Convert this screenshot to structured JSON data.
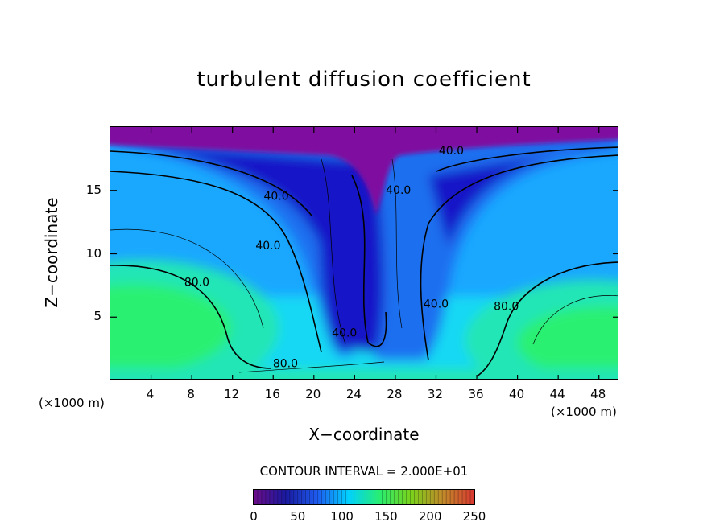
{
  "chart_data": {
    "type": "heatmap",
    "title": "turbulent diffusion coefficient",
    "xlabel": "X−coordinate",
    "ylabel": "Z−coordinate",
    "x_unit": "(×1000 m)",
    "y_unit": "(×1000 m)",
    "xlim": [
      0,
      50
    ],
    "ylim": [
      0,
      20
    ],
    "x_ticks": [
      4,
      8,
      12,
      16,
      20,
      24,
      28,
      32,
      36,
      40,
      44,
      48
    ],
    "y_ticks": [
      5,
      10,
      15
    ],
    "contour_interval_text": "CONTOUR INTERVAL = 2.000E+01",
    "contour_labels": [
      {
        "text": "40.0",
        "x": 33.5,
        "y": 18.1
      },
      {
        "text": "40.0",
        "x": 16.3,
        "y": 14.5
      },
      {
        "text": "40.0",
        "x": 15.5,
        "y": 10.6
      },
      {
        "text": "40.0",
        "x": 28.3,
        "y": 15.0
      },
      {
        "text": "40.0",
        "x": 32.0,
        "y": 6.0
      },
      {
        "text": "40.0",
        "x": 23.0,
        "y": 3.7
      },
      {
        "text": "80.0",
        "x": 8.5,
        "y": 7.7
      },
      {
        "text": "80.0",
        "x": 38.9,
        "y": 5.8
      },
      {
        "text": "80.0",
        "x": 17.2,
        "y": 1.3
      }
    ],
    "colorbar": {
      "min": 0,
      "max": 250,
      "ticks": [
        0,
        50,
        100,
        150,
        200,
        250
      ],
      "colors": [
        "#6a0d8a",
        "#1a1aa0",
        "#1e5cf0",
        "#00d0ff",
        "#28ee70",
        "#7ad21c",
        "#c08a28",
        "#d83a30"
      ]
    },
    "field_colors": {
      "top": "#7f08a0",
      "dark_blue": "#1818c8",
      "blue": "#1c6ff0",
      "light_blue": "#1aa8ff",
      "cyan": "#12d8f4",
      "teal": "#20e6b6",
      "green": "#2af072"
    }
  }
}
